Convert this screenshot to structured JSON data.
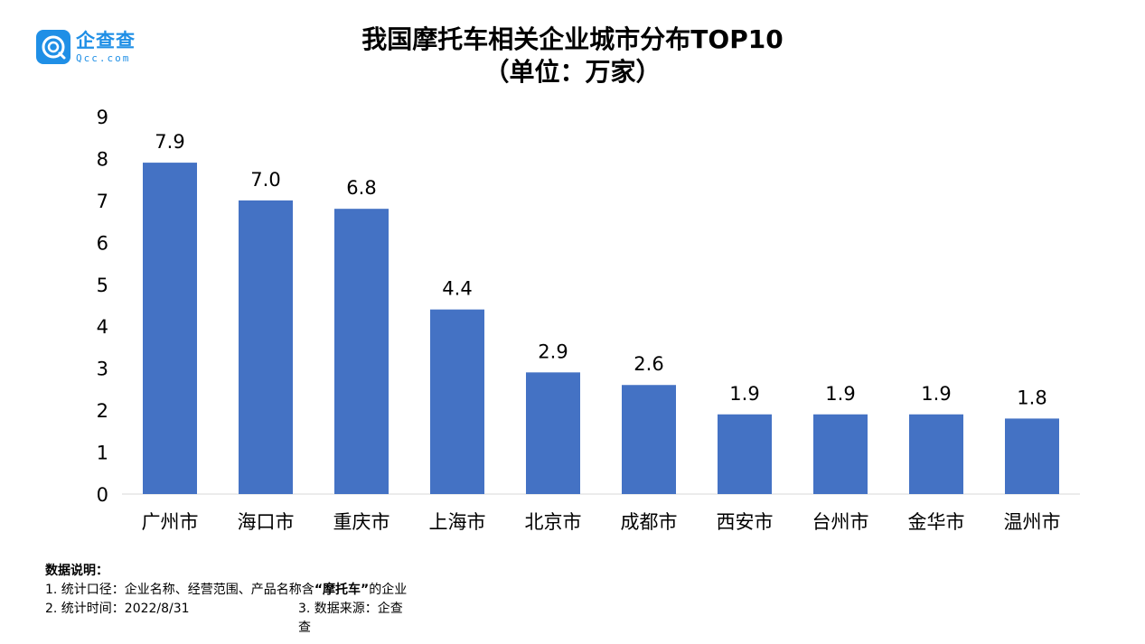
{
  "brand": {
    "name_cn": "企查查",
    "name_en": "Qcc.com",
    "icon": "qcc-logo-icon",
    "color": "#1f8fe6"
  },
  "chart_data": {
    "type": "bar",
    "title": "我国摩托车相关企业城市分布TOP10",
    "subtitle": "（单位：万家）",
    "categories": [
      "广州市",
      "海口市",
      "重庆市",
      "上海市",
      "北京市",
      "成都市",
      "西安市",
      "台州市",
      "金华市",
      "温州市"
    ],
    "values": [
      7.9,
      7.0,
      6.8,
      4.4,
      2.9,
      2.6,
      1.9,
      1.9,
      1.9,
      1.8
    ],
    "ylim": [
      0,
      9
    ],
    "yticks": [
      0,
      1,
      2,
      3,
      4,
      5,
      6,
      7,
      8,
      9
    ],
    "bar_color": "#4472c4",
    "grid": false,
    "legend": "none"
  },
  "notes": {
    "heading": "数据说明：",
    "line1_prefix": "1. 统计口径：企业名称、经营范围、产品名称含",
    "line1_keyword": "“摩托车”",
    "line1_suffix": "的企业",
    "line2_left": "2. 统计时间：2022/8/31",
    "line2_right": "3. 数据来源：企查查"
  }
}
